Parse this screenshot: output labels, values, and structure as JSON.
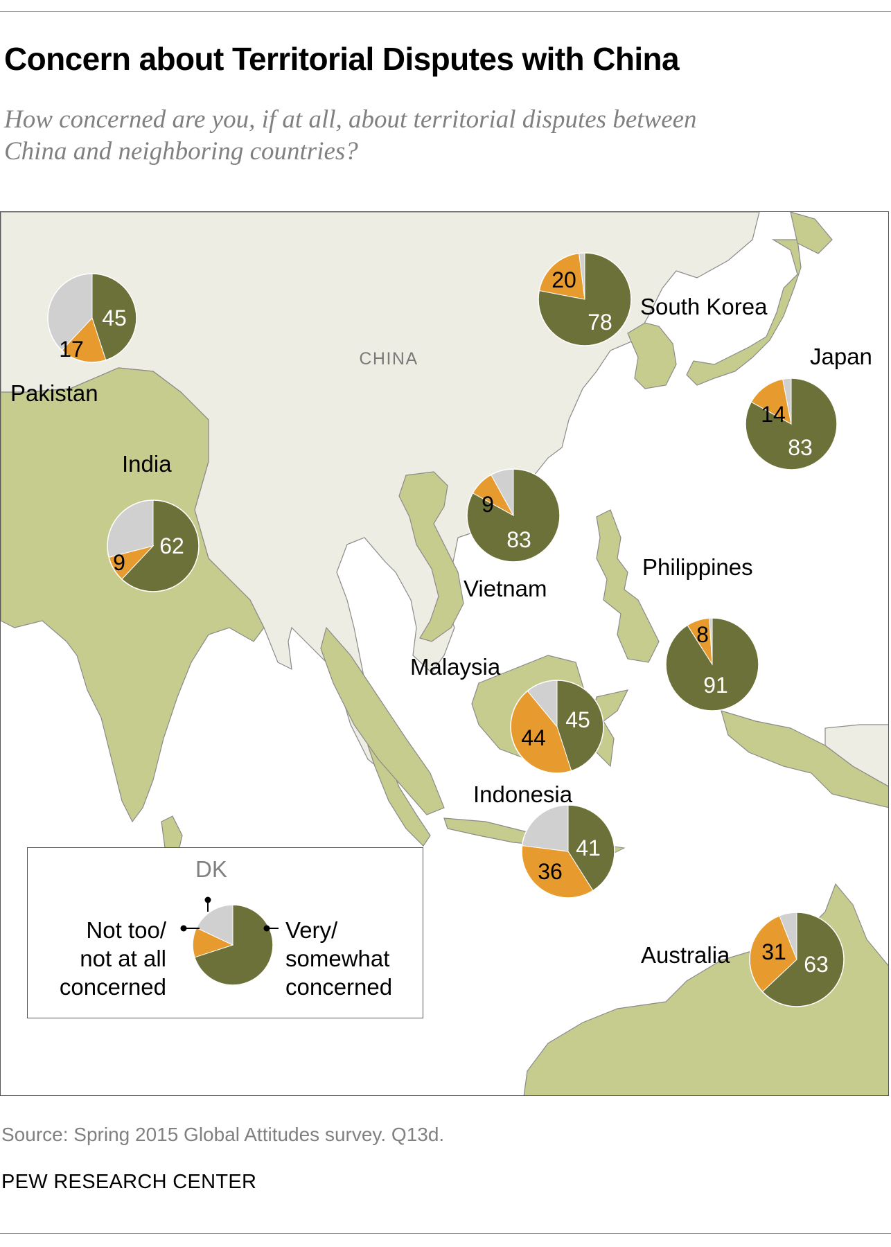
{
  "header": {
    "title": "Concern about Territorial Disputes with China",
    "subtitle": "How concerned are you, if at all, about territorial disputes between China and neighboring countries?"
  },
  "map": {
    "region_label": "CHINA",
    "colors": {
      "very_somewhat": "#6b7138",
      "not_too": "#e79b2e",
      "dk": "#d0d0d0",
      "surveyed_land": "#c6cc8e",
      "other_land": "#ededE3",
      "water": "#ffffff",
      "border": "#888888"
    },
    "countries": [
      {
        "name": "Pakistan",
        "very_somewhat": 45,
        "not_too": 17,
        "dk": 38
      },
      {
        "name": "South Korea",
        "very_somewhat": 78,
        "not_too": 20,
        "dk": 2
      },
      {
        "name": "Japan",
        "very_somewhat": 83,
        "not_too": 14,
        "dk": 3
      },
      {
        "name": "India",
        "very_somewhat": 62,
        "not_too": 9,
        "dk": 29
      },
      {
        "name": "Vietnam",
        "very_somewhat": 83,
        "not_too": 9,
        "dk": 8
      },
      {
        "name": "Philippines",
        "very_somewhat": 91,
        "not_too": 8,
        "dk": 1
      },
      {
        "name": "Malaysia",
        "very_somewhat": 45,
        "not_too": 44,
        "dk": 11
      },
      {
        "name": "Indonesia",
        "very_somewhat": 41,
        "not_too": 36,
        "dk": 23
      },
      {
        "name": "Australia",
        "very_somewhat": 63,
        "not_too": 31,
        "dk": 6
      }
    ]
  },
  "legend": {
    "dk_label": "DK",
    "not_too_label": [
      "Not too/",
      "not at all",
      "concerned"
    ],
    "very_label": [
      "Very/",
      "somewhat",
      "concerned"
    ],
    "example": {
      "very_somewhat": 70,
      "not_too": 12,
      "dk": 18
    }
  },
  "footer": {
    "source": "Source: Spring 2015 Global Attitudes survey. Q13d.",
    "org": "PEW RESEARCH CENTER"
  }
}
